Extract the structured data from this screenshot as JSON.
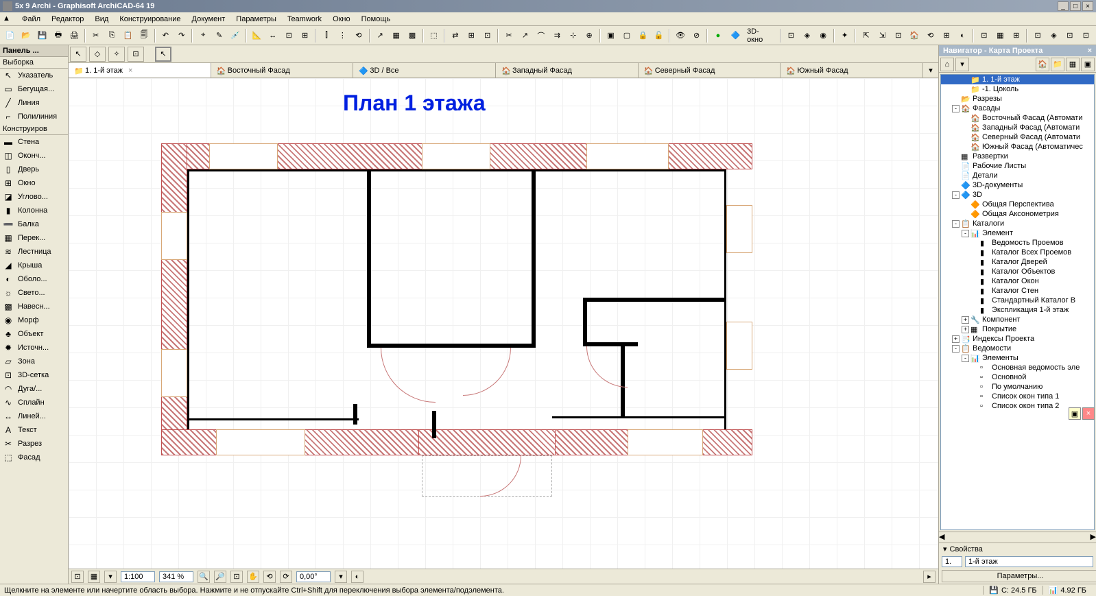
{
  "window": {
    "title": "5x 9 Archi - Graphisoft ArchiCAD-64 19"
  },
  "menu": {
    "items": [
      "Файл",
      "Редактор",
      "Вид",
      "Конструирование",
      "Документ",
      "Параметры",
      "Teamwork",
      "Окно",
      "Помощь"
    ]
  },
  "toolbar3d": {
    "label": "3D-окно"
  },
  "toolbox": {
    "header": "Панель ...",
    "section_select": "Выборка",
    "section_construct": "Конструиров",
    "tools_select": [
      {
        "icon": "↖",
        "label": "Указатель"
      },
      {
        "icon": "▭",
        "label": "Бегущая..."
      },
      {
        "icon": "╱",
        "label": "Линия"
      },
      {
        "icon": "⌐",
        "label": "Полилиния"
      }
    ],
    "tools_construct": [
      {
        "icon": "▬",
        "label": "Стена"
      },
      {
        "icon": "◫",
        "label": "Оконч..."
      },
      {
        "icon": "▯",
        "label": "Дверь"
      },
      {
        "icon": "⊞",
        "label": "Окно"
      },
      {
        "icon": "◪",
        "label": "Углово..."
      },
      {
        "icon": "▮",
        "label": "Колонна"
      },
      {
        "icon": "➖",
        "label": "Балка"
      },
      {
        "icon": "▦",
        "label": "Перек..."
      },
      {
        "icon": "≋",
        "label": "Лестница"
      },
      {
        "icon": "◢",
        "label": "Крыша"
      },
      {
        "icon": "◐",
        "label": "Оболо..."
      },
      {
        "icon": "☼",
        "label": "Свето..."
      },
      {
        "icon": "▩",
        "label": "Навесн..."
      },
      {
        "icon": "◉",
        "label": "Морф"
      },
      {
        "icon": "♣",
        "label": "Объект"
      },
      {
        "icon": "✹",
        "label": "Источн..."
      },
      {
        "icon": "▱",
        "label": "Зона"
      },
      {
        "icon": "⊡",
        "label": "3D-сетка"
      },
      {
        "icon": "◠",
        "label": "Дуга/..."
      },
      {
        "icon": "∿",
        "label": "Сплайн"
      },
      {
        "icon": "↔",
        "label": "Линей..."
      },
      {
        "icon": "A",
        "label": "Текст"
      },
      {
        "icon": "✂",
        "label": "Разрез"
      },
      {
        "icon": "⬚",
        "label": "Фасад"
      }
    ]
  },
  "doc_tabs": [
    {
      "icon": "📁",
      "label": "1. 1-й этаж",
      "active": true,
      "closable": true
    },
    {
      "icon": "🏠",
      "label": "Восточный Фасад"
    },
    {
      "icon": "🔷",
      "label": "3D / Все"
    },
    {
      "icon": "🏠",
      "label": "Западный Фасад"
    },
    {
      "icon": "🏠",
      "label": "Северный Фасад"
    },
    {
      "icon": "🏠",
      "label": "Южный Фасад"
    }
  ],
  "plan": {
    "title": "План 1 этажа",
    "title_color": "#0020e0",
    "title_fontsize": 32,
    "hatch_color": "#c87878",
    "wall_color": "#000000",
    "window_color": "#d8a878"
  },
  "bottom": {
    "scale": "1:100",
    "zoom": "341 %",
    "angle": "0,00°"
  },
  "navigator": {
    "title": "Навигатор - Карта Проекта",
    "tree": [
      {
        "indent": 2,
        "icon": "📁",
        "label": "1. 1-й этаж",
        "selected": true
      },
      {
        "indent": 2,
        "icon": "📁",
        "label": "-1. Цоколь"
      },
      {
        "indent": 1,
        "toggle": "",
        "icon": "📂",
        "label": "Разрезы"
      },
      {
        "indent": 1,
        "toggle": "-",
        "icon": "🏠",
        "label": "Фасады"
      },
      {
        "indent": 2,
        "icon": "🏠",
        "label": "Восточный Фасад (Автомати"
      },
      {
        "indent": 2,
        "icon": "🏠",
        "label": "Западный Фасад (Автомати"
      },
      {
        "indent": 2,
        "icon": "🏠",
        "label": "Северный Фасад (Автомати"
      },
      {
        "indent": 2,
        "icon": "🏠",
        "label": "Южный Фасад (Автоматичес"
      },
      {
        "indent": 1,
        "icon": "▦",
        "label": "Развертки"
      },
      {
        "indent": 1,
        "icon": "📄",
        "label": "Рабочие Листы"
      },
      {
        "indent": 1,
        "icon": "📄",
        "label": "Детали"
      },
      {
        "indent": 1,
        "icon": "🔷",
        "label": "3D-документы"
      },
      {
        "indent": 1,
        "toggle": "-",
        "icon": "🔷",
        "label": "3D"
      },
      {
        "indent": 2,
        "icon": "🔶",
        "label": "Общая Перспектива"
      },
      {
        "indent": 2,
        "icon": "🔶",
        "label": "Общая Аксонометрия"
      },
      {
        "indent": 1,
        "toggle": "-",
        "icon": "📋",
        "label": "Каталоги"
      },
      {
        "indent": 2,
        "toggle": "-",
        "icon": "📊",
        "label": "Элемент"
      },
      {
        "indent": 3,
        "icon": "▮",
        "label": "Ведомость Проемов"
      },
      {
        "indent": 3,
        "icon": "▮",
        "label": "Каталог Всех Проемов"
      },
      {
        "indent": 3,
        "icon": "▮",
        "label": "Каталог Дверей"
      },
      {
        "indent": 3,
        "icon": "▮",
        "label": "Каталог Объектов"
      },
      {
        "indent": 3,
        "icon": "▮",
        "label": "Каталог Окон"
      },
      {
        "indent": 3,
        "icon": "▮",
        "label": "Каталог Стен"
      },
      {
        "indent": 3,
        "icon": "▮",
        "label": "Стандартный Каталог В"
      },
      {
        "indent": 3,
        "icon": "▮",
        "label": "Экспликация 1-й этаж"
      },
      {
        "indent": 2,
        "toggle": "+",
        "icon": "🔧",
        "label": "Компонент"
      },
      {
        "indent": 2,
        "toggle": "+",
        "icon": "▦",
        "label": "Покрытие"
      },
      {
        "indent": 1,
        "toggle": "+",
        "icon": "📑",
        "label": "Индексы Проекта"
      },
      {
        "indent": 1,
        "toggle": "-",
        "icon": "📋",
        "label": "Ведомости"
      },
      {
        "indent": 2,
        "toggle": "-",
        "icon": "📊",
        "label": "Элементы"
      },
      {
        "indent": 3,
        "icon": "▫",
        "label": "Основная ведомость эле"
      },
      {
        "indent": 3,
        "icon": "▫",
        "label": "Основной"
      },
      {
        "indent": 3,
        "icon": "▫",
        "label": "По умолчанию"
      },
      {
        "indent": 3,
        "icon": "▫",
        "label": "Список окон типа 1"
      },
      {
        "indent": 3,
        "icon": "▫",
        "label": "Список окон типа 2"
      }
    ],
    "props_header": "Свойства",
    "props_num": "1.",
    "props_name": "1-й этаж",
    "props_btn": "Параметры..."
  },
  "status": {
    "hint": "Щелкните на элементе или начертите область выбора. Нажмите и не отпускайте Ctrl+Shift для переключения выбора элемента/подэлемента.",
    "disk_c": "C: 24.5 ГБ",
    "mem": "4.92 ГБ"
  }
}
